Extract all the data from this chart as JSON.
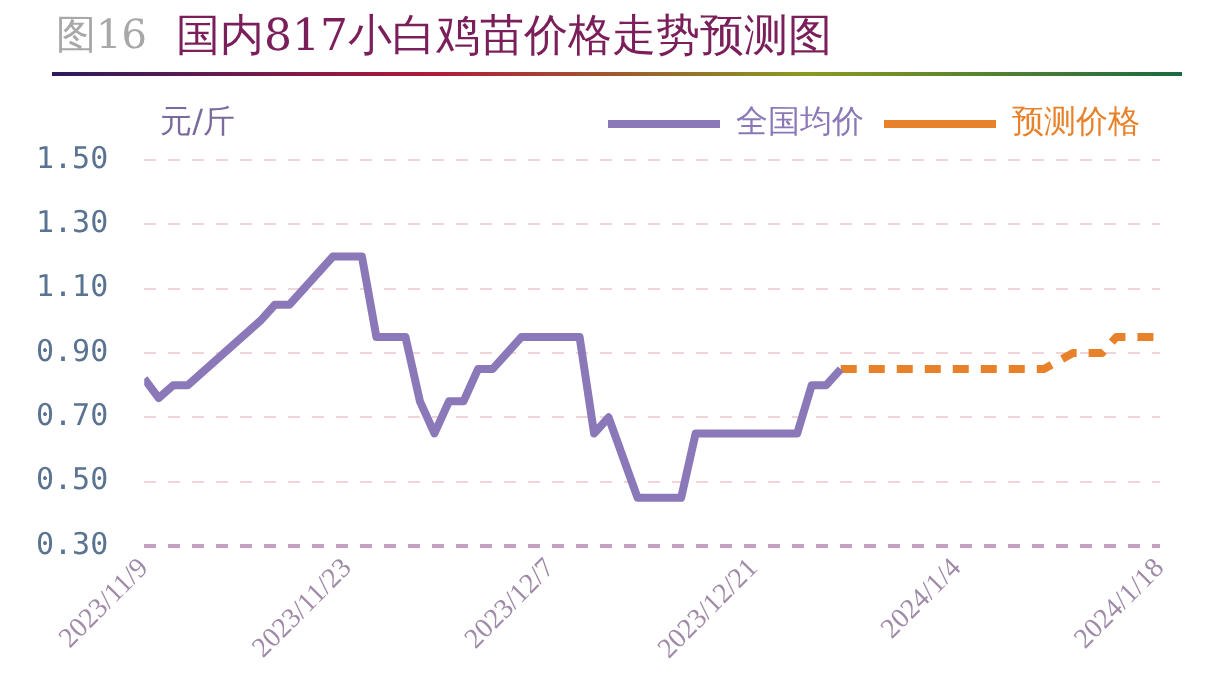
{
  "chart_data": {
    "type": "line",
    "title": "国内817小白鸡苗价格走势预测图",
    "ylabel": "元/斤",
    "annotations": [
      "图16"
    ],
    "xlim": [
      "2023-11-09",
      "2024-01-18"
    ],
    "xticks": [
      {
        "value": "2023-11-09",
        "label": "2023/11/9"
      },
      {
        "value": "2023-11-23",
        "label": "2023/11/23"
      },
      {
        "value": "2023-12-07",
        "label": "2023/12/7"
      },
      {
        "value": "2023-12-21",
        "label": "2023/12/21"
      },
      {
        "value": "2024-01-04",
        "label": "2024/1/4"
      },
      {
        "value": "2024-01-18",
        "label": "2024/1/18"
      }
    ],
    "ylim": [
      0.3,
      1.5
    ],
    "yticks": [
      {
        "value": 0.3,
        "label": "0.30"
      },
      {
        "value": 0.5,
        "label": "0.50"
      },
      {
        "value": 0.7,
        "label": "0.70"
      },
      {
        "value": 0.9,
        "label": "0.90"
      },
      {
        "value": 1.1,
        "label": "1.10"
      },
      {
        "value": 1.3,
        "label": "1.30"
      },
      {
        "value": 1.5,
        "label": "1.50"
      }
    ],
    "grid": "y",
    "legend": "top right",
    "marker": "none",
    "series": [
      {
        "name": "全国均价",
        "color": "#8a78b8",
        "line_style": "solid",
        "x": [
          "2023-11-09",
          "2023-11-10",
          "2023-11-11",
          "2023-11-12",
          "2023-11-17",
          "2023-11-18",
          "2023-11-19",
          "2023-11-22",
          "2023-11-24",
          "2023-11-25",
          "2023-11-27",
          "2023-11-28",
          "2023-11-29",
          "2023-11-30",
          "2023-12-01",
          "2023-12-02",
          "2023-12-03",
          "2023-12-05",
          "2023-12-09",
          "2023-12-10",
          "2023-12-11",
          "2023-12-13",
          "2023-12-16",
          "2023-12-17",
          "2023-12-24",
          "2023-12-25",
          "2023-12-26",
          "2023-12-27"
        ],
        "values": [
          0.82,
          0.76,
          0.8,
          0.8,
          1.0,
          1.05,
          1.05,
          1.2,
          1.2,
          0.95,
          0.95,
          0.75,
          0.65,
          0.75,
          0.75,
          0.85,
          0.85,
          0.95,
          0.95,
          0.65,
          0.7,
          0.45,
          0.45,
          0.65,
          0.65,
          0.8,
          0.8,
          0.85
        ]
      },
      {
        "name": "预测价格",
        "color": "#e8822a",
        "line_style": "dashed",
        "x": [
          "2023-12-27",
          "2024-01-10",
          "2024-01-12",
          "2024-01-14",
          "2024-01-15",
          "2024-01-18"
        ],
        "values": [
          0.85,
          0.85,
          0.9,
          0.9,
          0.95,
          0.95
        ]
      }
    ]
  }
}
